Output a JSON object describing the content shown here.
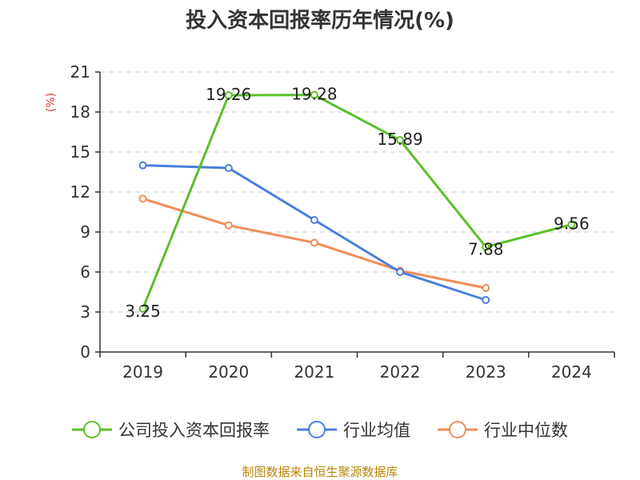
{
  "chart_data": {
    "type": "line",
    "title": "投入资本回报率历年情况(%)",
    "unit_label": "(%)",
    "categories": [
      "2019",
      "2020",
      "2021",
      "2022",
      "2023",
      "2024"
    ],
    "ylim": [
      0,
      21
    ],
    "yticks": [
      0,
      3,
      6,
      9,
      12,
      15,
      18,
      21
    ],
    "grid": true,
    "legend_position": "bottom",
    "series": [
      {
        "name": "公司投入资本回报率",
        "color": "#5cbf2a",
        "values": [
          3.25,
          19.26,
          19.28,
          15.89,
          7.88,
          9.56
        ],
        "labels": [
          "3.25",
          "19.26",
          "19.28",
          "15.89",
          "7.88",
          "9.56"
        ]
      },
      {
        "name": "行业均值",
        "color": "#4a7fdc",
        "values": [
          14.0,
          13.8,
          9.9,
          6.0,
          3.9,
          null
        ],
        "labels": []
      },
      {
        "name": "行业中位数",
        "color": "#f28c5a",
        "values": [
          11.5,
          9.5,
          8.2,
          6.1,
          4.8,
          null
        ],
        "labels": []
      }
    ]
  },
  "source_text": "制图数据来自恒生聚源数据库"
}
